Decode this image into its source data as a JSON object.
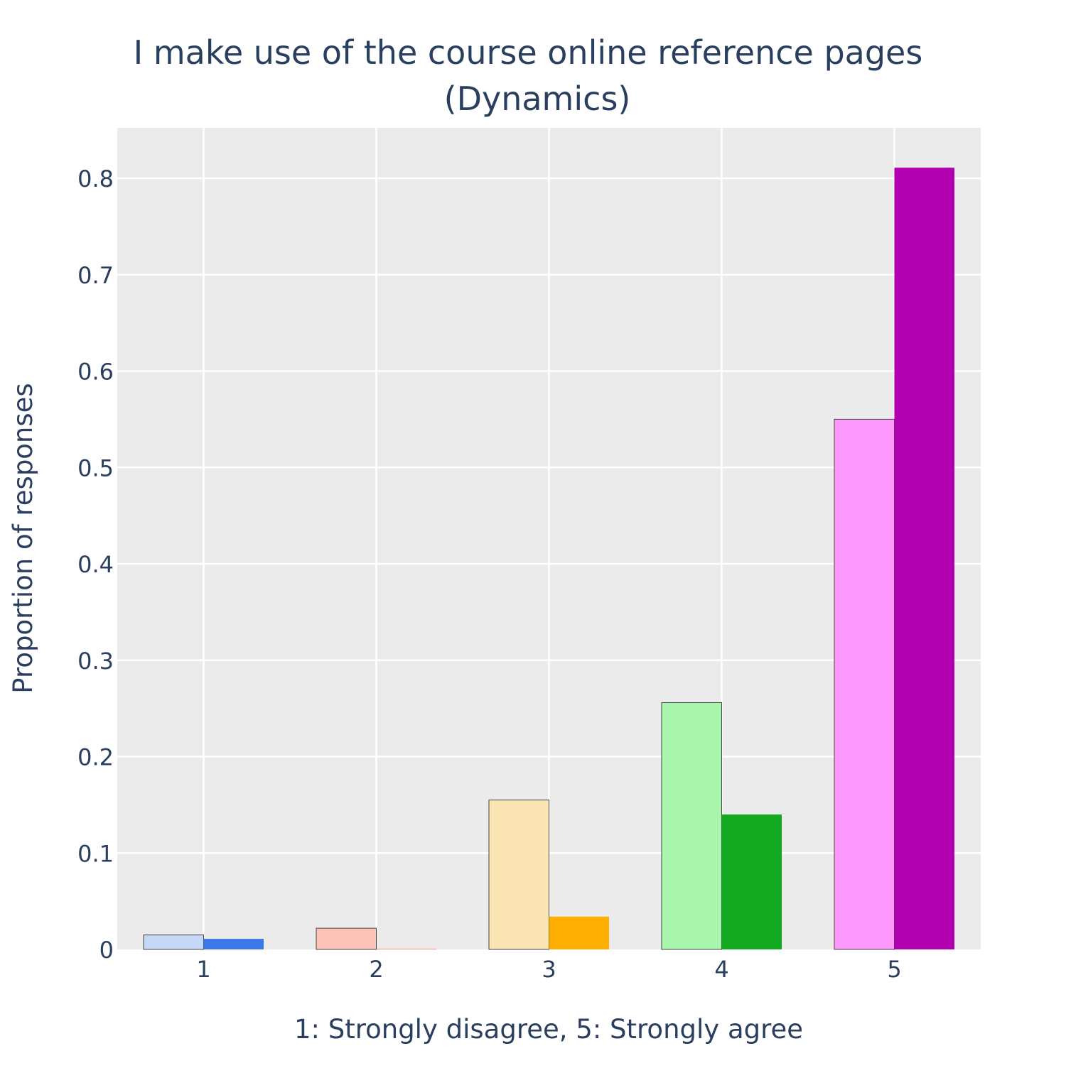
{
  "chart_data": {
    "type": "bar",
    "title_lines": [
      "I make use of the course online reference pages",
      "(Dynamics)"
    ],
    "xlabel": "1: Strongly disagree, 5: Strongly agree",
    "ylabel": "Proportion of responses",
    "categories": [
      "1",
      "2",
      "3",
      "4",
      "5"
    ],
    "ylim": [
      0,
      0.85
    ],
    "yticks": [
      0,
      0.1,
      0.2,
      0.3,
      0.4,
      0.5,
      0.6,
      0.7,
      0.8
    ],
    "ytick_labels": [
      "0",
      "0.1",
      "0.2",
      "0.3",
      "0.4",
      "0.5",
      "0.6",
      "0.7",
      "0.8"
    ],
    "grid": true,
    "legend": "none",
    "series": [
      {
        "values": [
          0.015,
          0.022,
          0.155,
          0.256,
          0.55
        ],
        "colors": [
          "#c6d8f7",
          "#fcc4b7",
          "#fce5b5",
          "#aaf5ae",
          "#fd98fd"
        ],
        "outline": "#444444"
      },
      {
        "values": [
          0.011,
          0.0,
          0.034,
          0.14,
          0.811
        ],
        "colors": [
          "#3b78e8",
          "#f45a2e",
          "#fdae01",
          "#13aa22",
          "#b000b0"
        ],
        "outline": "none"
      }
    ],
    "colors": {
      "plot_bg": "#ebebeb",
      "grid": "#ffffff",
      "text": "#2a3f5f"
    }
  }
}
